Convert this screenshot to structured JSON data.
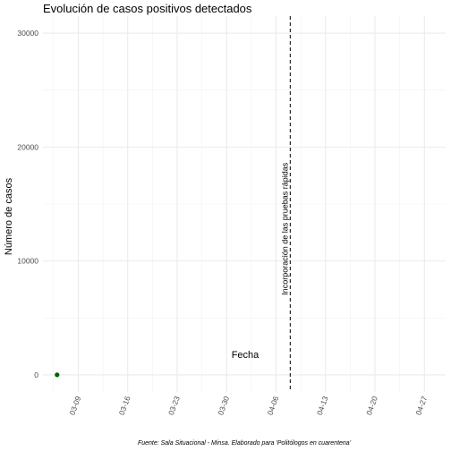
{
  "chart_data": {
    "type": "scatter",
    "title": "Evolución de casos positivos detectados",
    "xlabel": "Fecha",
    "ylabel": "Número de casos",
    "caption": "Fuente: Sala Situacional - Minsa. Elaborado para 'Politólogos en cuarentena'",
    "x_range": [
      "2020-03-04",
      "2020-04-30"
    ],
    "ylim": [
      0,
      30000
    ],
    "x_ticks": [
      "2020-03-09",
      "2020-03-16",
      "2020-03-23",
      "2020-03-30",
      "2020-04-06",
      "2020-04-13",
      "2020-04-20",
      "2020-04-27"
    ],
    "x_tick_labels": [
      "03-09",
      "03-16",
      "03-23",
      "03-30",
      "04-06",
      "04-13",
      "04-20",
      "04-27"
    ],
    "y_ticks": [
      0,
      10000,
      20000,
      30000
    ],
    "y_tick_labels": [
      "0",
      "10000",
      "20000",
      "30000"
    ],
    "grid": true,
    "series": [
      {
        "color": "#006400",
        "points": [
          {
            "x": "2020-03-06",
            "y": 1
          }
        ]
      }
    ],
    "annotations": [
      {
        "type": "vline",
        "x": "2020-04-08",
        "style": "dashed",
        "label": "Incorporación de las pruebas rápidas",
        "label_y": 7000
      }
    ]
  }
}
